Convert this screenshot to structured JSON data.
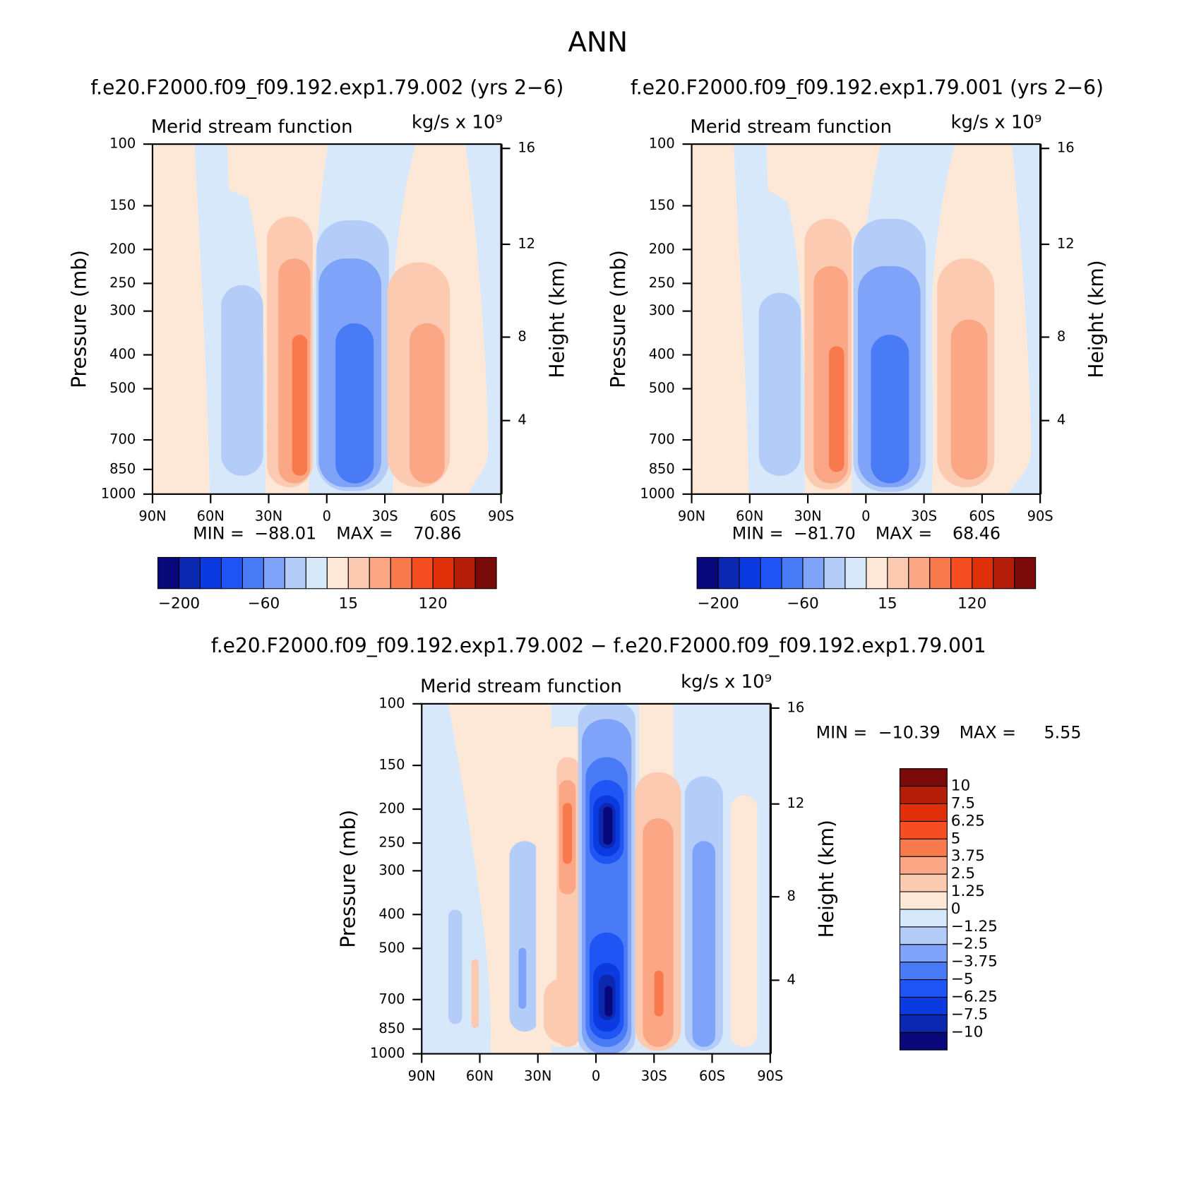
{
  "title": "ANN",
  "chart_data": [
    {
      "type": "contour",
      "title": "f.e20.F2000.f09_f09.192.exp1.79.002 (yrs 2−6)",
      "left_string": "Merid stream function",
      "right_string": "kg/s x 10⁹",
      "ylabel": "Pressure (mb)",
      "y2label": "Height (km)",
      "xlim": [
        90,
        -90
      ],
      "xticks": [
        {
          "value": 90,
          "label": "90N"
        },
        {
          "value": 60,
          "label": "60N"
        },
        {
          "value": 30,
          "label": "30N"
        },
        0,
        {
          "value": -30,
          "label": "30S"
        },
        {
          "value": -60,
          "label": "60S"
        },
        {
          "value": -90,
          "label": "90S"
        }
      ],
      "ylim": [
        1000,
        100
      ],
      "log_y": true,
      "yticks": [
        100,
        150,
        200,
        250,
        300,
        400,
        500,
        700,
        850,
        1000
      ],
      "y2lim": [
        0.11,
        16.18
      ],
      "y2ticks": [
        4,
        8,
        12,
        16
      ],
      "min_text": "MIN =",
      "min": {
        "value": -88.01,
        "label": "−88.01"
      },
      "max_text": "MAX =",
      "max": 70.86,
      "colorbar": {
        "colors": [
          "#08087a",
          "#0a28b0",
          "#0a3ae0",
          "#1f55f5",
          "#4a7bf7",
          "#7ea3f8",
          "#b4ccf8",
          "#d8e8fb",
          "#fde8d8",
          "#fccab0",
          "#fba786",
          "#f7794c",
          "#f74d22",
          "#e0300a",
          "#b41e08",
          "#7a0a0a"
        ],
        "labels": [
          {
            "value": -200,
            "label": "−200"
          },
          {
            "value": -60,
            "label": "−60"
          },
          15,
          120
        ]
      }
    },
    {
      "type": "contour",
      "title": "f.e20.F2000.f09_f09.192.exp1.79.001 (yrs 2−6)",
      "left_string": "Merid stream function",
      "right_string": "kg/s x 10⁹",
      "ylabel": "Pressure (mb)",
      "y2label": "Height (km)",
      "xlim": [
        90,
        -90
      ],
      "xticks": [
        {
          "value": 90,
          "label": "90N"
        },
        {
          "value": 60,
          "label": "60N"
        },
        {
          "value": 30,
          "label": "30N"
        },
        0,
        {
          "value": -30,
          "label": "30S"
        },
        {
          "value": -60,
          "label": "60S"
        },
        {
          "value": -90,
          "label": "90S"
        }
      ],
      "ylim": [
        1000,
        100
      ],
      "log_y": true,
      "yticks": [
        100,
        150,
        200,
        250,
        300,
        400,
        500,
        700,
        850,
        1000
      ],
      "y2lim": [
        0.11,
        16.18
      ],
      "y2ticks": [
        4,
        8,
        12,
        16
      ],
      "min_text": "MIN =",
      "min": {
        "value": -81.7,
        "label": "−81.70"
      },
      "max_text": "MAX =",
      "max": 68.46,
      "colorbar": {
        "colors": [
          "#08087a",
          "#0a28b0",
          "#0a3ae0",
          "#1f55f5",
          "#4a7bf7",
          "#7ea3f8",
          "#b4ccf8",
          "#d8e8fb",
          "#fde8d8",
          "#fccab0",
          "#fba786",
          "#f7794c",
          "#f74d22",
          "#e0300a",
          "#b41e08",
          "#7a0a0a"
        ],
        "labels": [
          {
            "value": -200,
            "label": "−200"
          },
          {
            "value": -60,
            "label": "−60"
          },
          15,
          120
        ]
      }
    },
    {
      "type": "contour",
      "title": "f.e20.F2000.f09_f09.192.exp1.79.002 − f.e20.F2000.f09_f09.192.exp1.79.001",
      "left_string": "Merid stream function",
      "right_string": "kg/s x 10⁹",
      "ylabel": "Pressure (mb)",
      "y2label": "Height (km)",
      "xlim": [
        90,
        -90
      ],
      "xticks": [
        {
          "value": 90,
          "label": "90N"
        },
        {
          "value": 60,
          "label": "60N"
        },
        {
          "value": 30,
          "label": "30N"
        },
        0,
        {
          "value": -30,
          "label": "30S"
        },
        {
          "value": -60,
          "label": "60S"
        },
        {
          "value": -90,
          "label": "90S"
        }
      ],
      "ylim": [
        1000,
        100
      ],
      "log_y": true,
      "yticks": [
        100,
        150,
        200,
        250,
        300,
        400,
        500,
        700,
        850,
        1000
      ],
      "y2lim": [
        0.11,
        16.18
      ],
      "y2ticks": [
        4,
        8,
        12,
        16
      ],
      "min_text": "MIN =",
      "min": {
        "value": -10.39,
        "label": "−10.39"
      },
      "max_text": "MAX =",
      "max": 5.55,
      "colorbar": {
        "colors": [
          "#08087a",
          "#0a28b0",
          "#0a3ae0",
          "#1f55f5",
          "#4a7bf7",
          "#7ea3f8",
          "#b4ccf8",
          "#d8e8fb",
          "#fde8d8",
          "#fccab0",
          "#fba786",
          "#f7794c",
          "#f74d22",
          "#e0300a",
          "#b41e08",
          "#7a0a0a"
        ],
        "labels": [
          {
            "value": -10,
            "label": "−10"
          },
          {
            "value": -7.5,
            "label": "−7.5"
          },
          {
            "value": -6.25,
            "label": "−6.25"
          },
          {
            "value": -5,
            "label": "−5"
          },
          {
            "value": -3.75,
            "label": "−3.75"
          },
          {
            "value": -2.5,
            "label": "−2.5"
          },
          {
            "value": -1.25,
            "label": "−1.25"
          },
          0,
          1.25,
          2.5,
          3.75,
          5,
          6.25,
          7.5,
          10
        ]
      }
    }
  ]
}
